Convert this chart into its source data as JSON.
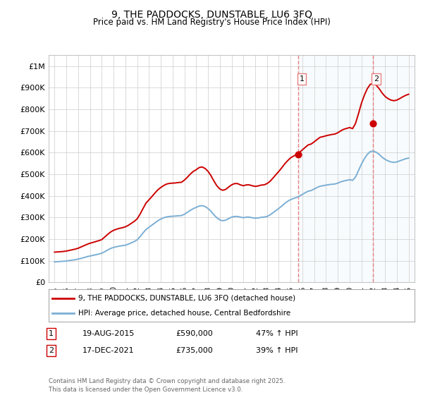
{
  "title": "9, THE PADDOCKS, DUNSTABLE, LU6 3FQ",
  "subtitle": "Price paid vs. HM Land Registry's House Price Index (HPI)",
  "ylim": [
    0,
    1050000
  ],
  "yticks": [
    0,
    100000,
    200000,
    300000,
    400000,
    500000,
    600000,
    700000,
    800000,
    900000,
    1000000
  ],
  "ytick_labels": [
    "£0",
    "£100K",
    "£200K",
    "£300K",
    "£400K",
    "£500K",
    "£600K",
    "£700K",
    "£800K",
    "£900K",
    "£1M"
  ],
  "hpi_color": "#7bafd4",
  "price_color": "#cc0000",
  "vline_color": "#e88080",
  "bg_color": "#ffffff",
  "grid_color": "#cccccc",
  "transaction1_date": "19-AUG-2015",
  "transaction1_price": 590000,
  "transaction1_hpi": "47% ↑ HPI",
  "transaction1_x": 2015.64,
  "transaction2_date": "17-DEC-2021",
  "transaction2_price": 735000,
  "transaction2_hpi": "39% ↑ HPI",
  "transaction2_x": 2021.96,
  "legend_label1": "9, THE PADDOCKS, DUNSTABLE, LU6 3FQ (detached house)",
  "legend_label2": "HPI: Average price, detached house, Central Bedfordshire",
  "footer": "Contains HM Land Registry data © Crown copyright and database right 2025.\nThis data is licensed under the Open Government Licence v3.0.",
  "hpi_data_x": [
    1995.0,
    1995.25,
    1995.5,
    1995.75,
    1996.0,
    1996.25,
    1996.5,
    1996.75,
    1997.0,
    1997.25,
    1997.5,
    1997.75,
    1998.0,
    1998.25,
    1998.5,
    1998.75,
    1999.0,
    1999.25,
    1999.5,
    1999.75,
    2000.0,
    2000.25,
    2000.5,
    2000.75,
    2001.0,
    2001.25,
    2001.5,
    2001.75,
    2002.0,
    2002.25,
    2002.5,
    2002.75,
    2003.0,
    2003.25,
    2003.5,
    2003.75,
    2004.0,
    2004.25,
    2004.5,
    2004.75,
    2005.0,
    2005.25,
    2005.5,
    2005.75,
    2006.0,
    2006.25,
    2006.5,
    2006.75,
    2007.0,
    2007.25,
    2007.5,
    2007.75,
    2008.0,
    2008.25,
    2008.5,
    2008.75,
    2009.0,
    2009.25,
    2009.5,
    2009.75,
    2010.0,
    2010.25,
    2010.5,
    2010.75,
    2011.0,
    2011.25,
    2011.5,
    2011.75,
    2012.0,
    2012.25,
    2012.5,
    2012.75,
    2013.0,
    2013.25,
    2013.5,
    2013.75,
    2014.0,
    2014.25,
    2014.5,
    2014.75,
    2015.0,
    2015.25,
    2015.5,
    2015.75,
    2016.0,
    2016.25,
    2016.5,
    2016.75,
    2017.0,
    2017.25,
    2017.5,
    2017.75,
    2018.0,
    2018.25,
    2018.5,
    2018.75,
    2019.0,
    2019.25,
    2019.5,
    2019.75,
    2020.0,
    2020.25,
    2020.5,
    2020.75,
    2021.0,
    2021.25,
    2021.5,
    2021.75,
    2022.0,
    2022.25,
    2022.5,
    2022.75,
    2023.0,
    2023.25,
    2023.5,
    2023.75,
    2024.0,
    2024.25,
    2024.5,
    2024.75,
    2025.0
  ],
  "hpi_data_y": [
    95000,
    96000,
    97000,
    98000,
    99000,
    101000,
    103000,
    105000,
    108000,
    111000,
    115000,
    119000,
    122000,
    125000,
    128000,
    131000,
    135000,
    142000,
    150000,
    157000,
    162000,
    165000,
    168000,
    170000,
    172000,
    177000,
    183000,
    189000,
    197000,
    212000,
    229000,
    245000,
    255000,
    265000,
    275000,
    285000,
    293000,
    299000,
    303000,
    305000,
    306000,
    307000,
    308000,
    309000,
    315000,
    324000,
    333000,
    341000,
    347000,
    353000,
    355000,
    351000,
    342000,
    329000,
    313000,
    299000,
    289000,
    285000,
    288000,
    295000,
    302000,
    305000,
    305000,
    302000,
    299000,
    302000,
    302000,
    299000,
    297000,
    298000,
    301000,
    302000,
    305000,
    312000,
    322000,
    332000,
    342000,
    353000,
    365000,
    375000,
    383000,
    388000,
    393000,
    399000,
    407000,
    415000,
    422000,
    425000,
    432000,
    439000,
    445000,
    447000,
    450000,
    452000,
    454000,
    455000,
    459000,
    465000,
    469000,
    472000,
    475000,
    472000,
    487000,
    517000,
    547000,
    572000,
    592000,
    605000,
    607000,
    602000,
    592000,
    579000,
    569000,
    562000,
    557000,
    555000,
    557000,
    562000,
    567000,
    572000,
    575000
  ],
  "price_data_x": [
    1995.0,
    1995.25,
    1995.5,
    1995.75,
    1996.0,
    1996.25,
    1996.5,
    1996.75,
    1997.0,
    1997.25,
    1997.5,
    1997.75,
    1998.0,
    1998.25,
    1998.5,
    1998.75,
    1999.0,
    1999.25,
    1999.5,
    1999.75,
    2000.0,
    2000.25,
    2000.5,
    2000.75,
    2001.0,
    2001.25,
    2001.5,
    2001.75,
    2002.0,
    2002.25,
    2002.5,
    2002.75,
    2003.0,
    2003.25,
    2003.5,
    2003.75,
    2004.0,
    2004.25,
    2004.5,
    2004.75,
    2005.0,
    2005.25,
    2005.5,
    2005.75,
    2006.0,
    2006.25,
    2006.5,
    2006.75,
    2007.0,
    2007.25,
    2007.5,
    2007.75,
    2008.0,
    2008.25,
    2008.5,
    2008.75,
    2009.0,
    2009.25,
    2009.5,
    2009.75,
    2010.0,
    2010.25,
    2010.5,
    2010.75,
    2011.0,
    2011.25,
    2011.5,
    2011.75,
    2012.0,
    2012.25,
    2012.5,
    2012.75,
    2013.0,
    2013.25,
    2013.5,
    2013.75,
    2014.0,
    2014.25,
    2014.5,
    2014.75,
    2015.0,
    2015.25,
    2015.5,
    2015.75,
    2016.0,
    2016.25,
    2016.5,
    2016.75,
    2017.0,
    2017.25,
    2017.5,
    2017.75,
    2018.0,
    2018.25,
    2018.5,
    2018.75,
    2019.0,
    2019.25,
    2019.5,
    2019.75,
    2020.0,
    2020.25,
    2020.5,
    2020.75,
    2021.0,
    2021.25,
    2021.5,
    2021.75,
    2022.0,
    2022.25,
    2022.5,
    2022.75,
    2023.0,
    2023.25,
    2023.5,
    2023.75,
    2024.0,
    2024.25,
    2024.5,
    2024.75,
    2025.0
  ],
  "price_data_y": [
    140000,
    141000,
    142000,
    143000,
    145000,
    148000,
    151000,
    154000,
    158000,
    164000,
    170000,
    176000,
    181000,
    185000,
    189000,
    193000,
    198000,
    210000,
    222000,
    233000,
    241000,
    246000,
    250000,
    253000,
    257000,
    264000,
    273000,
    282000,
    294000,
    316000,
    342000,
    367000,
    382000,
    397000,
    413000,
    428000,
    439000,
    448000,
    455000,
    458000,
    459000,
    460000,
    462000,
    463000,
    473000,
    486000,
    501000,
    513000,
    521000,
    531000,
    534000,
    527000,
    514000,
    494000,
    469000,
    447000,
    432000,
    426000,
    430000,
    441000,
    451000,
    457000,
    457000,
    451000,
    447000,
    451000,
    451000,
    447000,
    444000,
    446000,
    450000,
    451000,
    457000,
    467000,
    482000,
    498000,
    513000,
    530000,
    548000,
    563000,
    576000,
    584000,
    591000,
    601000,
    613000,
    625000,
    636000,
    640000,
    650000,
    661000,
    671000,
    674000,
    678000,
    681000,
    684000,
    686000,
    692000,
    701000,
    708000,
    712000,
    716000,
    711000,
    735000,
    780000,
    828000,
    866000,
    896000,
    916000,
    919000,
    912000,
    896000,
    876000,
    860000,
    850000,
    843000,
    840000,
    843000,
    850000,
    858000,
    865000,
    870000
  ],
  "xlim": [
    1994.5,
    2025.5
  ],
  "xticks": [
    1995,
    1996,
    1997,
    1998,
    1999,
    2000,
    2001,
    2002,
    2003,
    2004,
    2005,
    2006,
    2007,
    2008,
    2009,
    2010,
    2011,
    2012,
    2013,
    2014,
    2015,
    2016,
    2017,
    2018,
    2019,
    2020,
    2021,
    2022,
    2023,
    2024,
    2025
  ]
}
